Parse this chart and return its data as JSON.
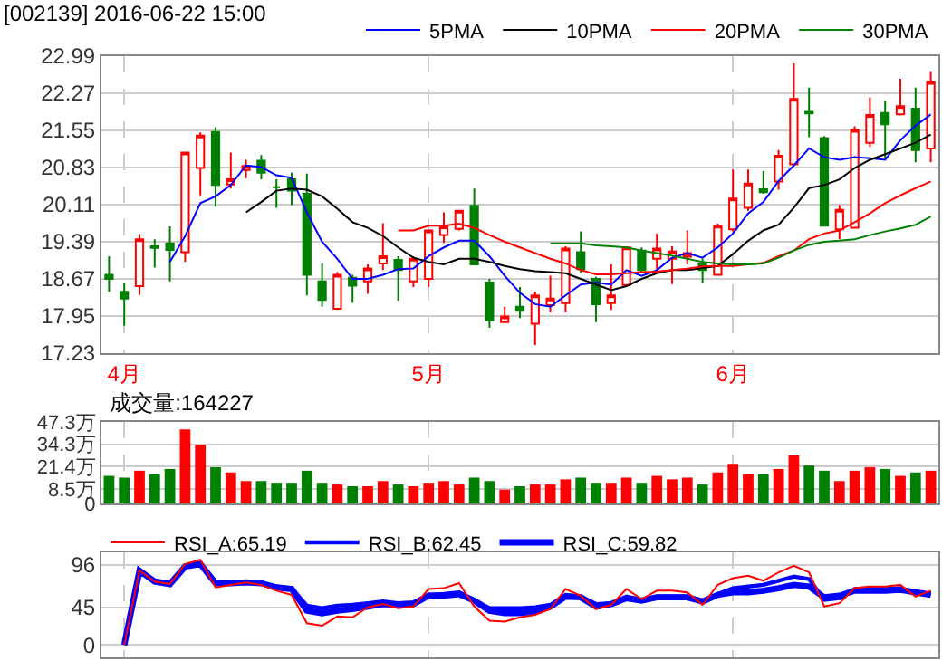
{
  "chart_data": [
    {
      "type": "candlestick",
      "title": "[002139] 2016-06-22 15:00",
      "categories": [
        null,
        "4月",
        null,
        null,
        null,
        null,
        null,
        null,
        null,
        null,
        null,
        null,
        null,
        null,
        null,
        null,
        null,
        null,
        null,
        null,
        null,
        "5月",
        null,
        null,
        null,
        null,
        null,
        null,
        null,
        null,
        null,
        null,
        null,
        null,
        null,
        null,
        null,
        null,
        null,
        null,
        null,
        "6月",
        null,
        null,
        null,
        null,
        null,
        null,
        null,
        null,
        null,
        null,
        null,
        null,
        null
      ],
      "ohlc": [
        [
          18.75,
          19.11,
          18.42,
          18.67
        ],
        [
          18.42,
          18.6,
          17.76,
          18.29
        ],
        [
          18.53,
          19.54,
          18.36,
          19.44
        ],
        [
          19.3,
          19.44,
          18.89,
          19.27
        ],
        [
          19.36,
          19.69,
          18.62,
          19.23
        ],
        [
          19.19,
          21.13,
          19.0,
          21.12
        ],
        [
          20.82,
          21.51,
          20.29,
          21.45
        ],
        [
          21.52,
          21.61,
          20.07,
          20.49
        ],
        [
          20.5,
          21.12,
          20.42,
          20.6
        ],
        [
          20.78,
          20.98,
          20.62,
          20.86
        ],
        [
          20.96,
          21.07,
          20.6,
          20.73
        ],
        [
          20.45,
          20.6,
          20.05,
          20.45
        ],
        [
          20.6,
          20.73,
          20.1,
          20.38
        ],
        [
          20.32,
          20.71,
          18.35,
          18.75
        ],
        [
          18.62,
          18.97,
          18.13,
          18.26
        ],
        [
          18.09,
          18.8,
          18.07,
          18.75
        ],
        [
          18.69,
          18.75,
          18.21,
          18.54
        ],
        [
          18.62,
          18.95,
          18.38,
          18.87
        ],
        [
          18.97,
          19.75,
          18.84,
          19.11
        ],
        [
          19.04,
          19.11,
          18.25,
          18.84
        ],
        [
          18.62,
          19.11,
          18.51,
          19.06
        ],
        [
          18.67,
          19.63,
          18.51,
          19.61
        ],
        [
          19.52,
          19.96,
          19.37,
          19.69
        ],
        [
          19.64,
          20.01,
          19.61,
          19.99
        ],
        [
          20.09,
          20.42,
          18.95,
          18.95
        ],
        [
          18.6,
          18.67,
          17.72,
          17.87
        ],
        [
          17.83,
          18.13,
          17.83,
          17.94
        ],
        [
          18.13,
          18.51,
          17.91,
          18.05
        ],
        [
          17.8,
          18.42,
          17.39,
          18.35
        ],
        [
          18.16,
          18.73,
          18.02,
          18.29
        ],
        [
          18.2,
          19.3,
          18.02,
          19.26
        ],
        [
          19.19,
          19.59,
          18.78,
          18.86
        ],
        [
          18.67,
          18.71,
          17.83,
          18.18
        ],
        [
          18.2,
          18.95,
          18.07,
          18.35
        ],
        [
          18.55,
          19.3,
          18.51,
          19.28
        ],
        [
          19.22,
          19.28,
          18.78,
          18.84
        ],
        [
          19.06,
          19.55,
          18.84,
          19.26
        ],
        [
          19.06,
          19.3,
          18.57,
          19.2
        ],
        [
          19.1,
          19.61,
          18.95,
          19.17
        ],
        [
          18.95,
          19.06,
          18.6,
          18.84
        ],
        [
          18.75,
          19.74,
          18.73,
          19.7
        ],
        [
          19.63,
          20.79,
          19.59,
          20.23
        ],
        [
          20.05,
          20.79,
          19.99,
          20.52
        ],
        [
          20.41,
          20.76,
          20.32,
          20.35
        ],
        [
          20.56,
          21.17,
          20.4,
          21.06
        ],
        [
          20.89,
          22.85,
          20.87,
          22.16
        ],
        [
          21.91,
          22.38,
          21.42,
          21.88
        ],
        [
          21.4,
          21.44,
          19.7,
          19.7
        ],
        [
          19.63,
          20.1,
          19.44,
          20.01
        ],
        [
          19.66,
          21.63,
          19.66,
          21.56
        ],
        [
          21.31,
          22.19,
          21.23,
          21.85
        ],
        [
          21.89,
          22.13,
          20.98,
          21.67
        ],
        [
          21.86,
          22.55,
          21.84,
          22.02
        ],
        [
          21.97,
          22.38,
          20.93,
          21.17
        ],
        [
          21.2,
          22.7,
          20.93,
          22.49
        ]
      ],
      "series": [
        {
          "name": "5PMA",
          "type": "line",
          "color": "#0000ff",
          "values": [
            null,
            null,
            null,
            null,
            19.0,
            19.5,
            20.14,
            20.27,
            20.49,
            20.87,
            20.84,
            20.68,
            20.63,
            19.96,
            19.39,
            19.06,
            18.67,
            18.67,
            18.75,
            18.86,
            18.87,
            19.11,
            19.28,
            19.41,
            19.41,
            19.11,
            18.73,
            18.4,
            18.18,
            18.13,
            18.35,
            18.56,
            18.6,
            18.56,
            18.84,
            18.73,
            18.84,
            19.08,
            19.17,
            19.08,
            19.28,
            19.55,
            19.94,
            20.16,
            20.57,
            20.87,
            21.2,
            21.03,
            20.98,
            21.03,
            21.01,
            20.98,
            21.36,
            21.64,
            21.86
          ]
        },
        {
          "name": "10PMA",
          "type": "line",
          "color": "#000000",
          "values": [
            null,
            null,
            null,
            null,
            null,
            null,
            null,
            null,
            null,
            19.96,
            20.16,
            20.38,
            20.42,
            20.4,
            20.27,
            20.03,
            19.77,
            19.66,
            19.5,
            19.28,
            19.08,
            19.0,
            18.95,
            19.06,
            19.06,
            19.0,
            18.92,
            18.86,
            18.82,
            18.8,
            18.78,
            18.67,
            18.56,
            18.45,
            18.53,
            18.67,
            18.78,
            18.84,
            18.84,
            18.88,
            18.92,
            19.15,
            19.41,
            19.61,
            19.72,
            20.05,
            20.43,
            20.49,
            20.6,
            20.82,
            20.98,
            21.09,
            21.2,
            21.31,
            21.47
          ]
        },
        {
          "name": "20PMA",
          "type": "line",
          "color": "#ff0000",
          "values": [
            null,
            null,
            null,
            null,
            null,
            null,
            null,
            null,
            null,
            null,
            null,
            null,
            null,
            null,
            null,
            null,
            null,
            null,
            null,
            19.61,
            19.61,
            19.7,
            19.7,
            19.74,
            19.66,
            19.52,
            19.39,
            19.28,
            19.17,
            19.06,
            18.97,
            18.84,
            18.76,
            18.76,
            18.78,
            18.8,
            18.81,
            18.84,
            18.87,
            18.91,
            18.92,
            18.92,
            18.95,
            18.98,
            19.11,
            19.22,
            19.44,
            19.55,
            19.61,
            19.77,
            19.94,
            20.14,
            20.29,
            20.43,
            20.56
          ]
        },
        {
          "name": "30PMA",
          "type": "line",
          "color": "#008000",
          "values": [
            null,
            null,
            null,
            null,
            null,
            null,
            null,
            null,
            null,
            null,
            null,
            null,
            null,
            null,
            null,
            null,
            null,
            null,
            null,
            null,
            null,
            null,
            null,
            null,
            null,
            null,
            null,
            null,
            null,
            19.36,
            19.36,
            19.36,
            19.32,
            19.3,
            19.28,
            19.22,
            19.17,
            19.12,
            19.06,
            19.0,
            18.97,
            18.95,
            18.95,
            18.97,
            19.08,
            19.22,
            19.33,
            19.39,
            19.41,
            19.44,
            19.52,
            19.59,
            19.65,
            19.72,
            19.88
          ]
        }
      ],
      "ylim": [
        17.23,
        22.99
      ],
      "yticks": [
        17.23,
        17.95,
        18.67,
        19.39,
        20.11,
        20.83,
        21.55,
        22.27,
        22.99
      ],
      "grid": true,
      "legend": "top right"
    },
    {
      "type": "bar",
      "title": "成交量:164227",
      "categories": [
        null,
        null,
        null,
        null,
        null,
        null,
        null,
        null,
        null,
        null,
        null,
        null,
        null,
        null,
        null,
        null,
        null,
        null,
        null,
        null,
        null,
        null,
        null,
        null,
        null,
        null,
        null,
        null,
        null,
        null,
        null,
        null,
        null,
        null,
        null,
        null,
        null,
        null,
        null,
        null,
        null,
        null,
        null,
        null,
        null,
        null,
        null,
        null,
        null,
        null,
        null,
        null,
        null,
        null,
        null
      ],
      "values": [
        16,
        15,
        19,
        17,
        20,
        43,
        34,
        21,
        18,
        13,
        13,
        12,
        12,
        19,
        12,
        11,
        10,
        10,
        13,
        11,
        10,
        12,
        13,
        11,
        15,
        13,
        8,
        10,
        11,
        11,
        14,
        15,
        12,
        12,
        15,
        12,
        16,
        14,
        15,
        11,
        18,
        23,
        17,
        17,
        20,
        28,
        22,
        19,
        13,
        19,
        21,
        20,
        16,
        18,
        19
      ],
      "colors": [
        "#008000",
        "#008000",
        "#ff0000",
        "#008000",
        "#008000",
        "#ff0000",
        "#ff0000",
        "#008000",
        "#ff0000",
        "#ff0000",
        "#008000",
        "#008000",
        "#008000",
        "#008000",
        "#008000",
        "#ff0000",
        "#008000",
        "#ff0000",
        "#ff0000",
        "#008000",
        "#ff0000",
        "#ff0000",
        "#ff0000",
        "#ff0000",
        "#008000",
        "#008000",
        "#ff0000",
        "#008000",
        "#ff0000",
        "#ff0000",
        "#ff0000",
        "#008000",
        "#008000",
        "#ff0000",
        "#ff0000",
        "#008000",
        "#ff0000",
        "#ff0000",
        "#ff0000",
        "#008000",
        "#ff0000",
        "#ff0000",
        "#ff0000",
        "#008000",
        "#ff0000",
        "#ff0000",
        "#008000",
        "#008000",
        "#ff0000",
        "#ff0000",
        "#ff0000",
        "#008000",
        "#ff0000",
        "#008000",
        "#ff0000"
      ],
      "ylim": [
        0,
        47.3
      ],
      "yticks": [
        0,
        {
          "value": 8.5,
          "label": "8.5万"
        },
        {
          "value": 21.4,
          "label": "21.4万"
        },
        {
          "value": 34.3,
          "label": "34.3万"
        },
        {
          "value": 47.3,
          "label": "47.3万"
        }
      ],
      "grid": true
    },
    {
      "type": "line",
      "categories": [
        null,
        null,
        null,
        null,
        null,
        null,
        null,
        null,
        null,
        null,
        null,
        null,
        null,
        null,
        null,
        null,
        null,
        null,
        null,
        null,
        null,
        null,
        null,
        null,
        null,
        null,
        null,
        null,
        null,
        null,
        null,
        null,
        null,
        null,
        null,
        null,
        null,
        null,
        null,
        null,
        null,
        null,
        null,
        null,
        null,
        null,
        null,
        null,
        null,
        null,
        null,
        null,
        null,
        null,
        null
      ],
      "series": [
        {
          "name": "RSI_A:65.19",
          "color": "#ff0000",
          "values": [
            null,
            0,
            89,
            76,
            73,
            97,
            102,
            69,
            72,
            75,
            72,
            65,
            60,
            26,
            23,
            34,
            33,
            45,
            49,
            44,
            46,
            67,
            68,
            74,
            46,
            29,
            28,
            33,
            36,
            43,
            67,
            59,
            43,
            48,
            67,
            55,
            65,
            65,
            63,
            48,
            72,
            80,
            83,
            77,
            87,
            95,
            87,
            46,
            50,
            68,
            70,
            70,
            72,
            58,
            65
          ]
        },
        {
          "name": "RSI_B:62.45",
          "color": "#0000ff",
          "values": [
            null,
            0,
            89,
            76,
            73,
            95,
            98,
            75,
            75,
            76,
            74,
            70,
            68,
            47,
            44,
            47,
            48,
            50,
            52,
            50,
            51,
            60,
            61,
            63,
            54,
            44,
            44,
            44,
            45,
            48,
            60,
            58,
            49,
            50,
            58,
            54,
            58,
            58,
            58,
            53,
            61,
            68,
            70,
            72,
            77,
            82,
            79,
            54,
            56,
            67,
            68,
            67,
            68,
            61,
            62
          ]
        },
        {
          "name": "RSI_C:59.82",
          "color": "#0000ff",
          "values": [
            null,
            0,
            89,
            76,
            73,
            94,
            97,
            74,
            74,
            75,
            74,
            69,
            67,
            41,
            38,
            41,
            43,
            46,
            49,
            48,
            49,
            59,
            59,
            61,
            53,
            41,
            38,
            38,
            40,
            46,
            58,
            57,
            46,
            49,
            56,
            53,
            57,
            57,
            57,
            52,
            60,
            63,
            63,
            65,
            68,
            72,
            70,
            57,
            59,
            65,
            65,
            65,
            66,
            63,
            60
          ]
        }
      ],
      "ylim": [
        -15,
        111
      ],
      "yticks": [
        0,
        45,
        96
      ],
      "grid": true,
      "legend": "top left"
    }
  ]
}
